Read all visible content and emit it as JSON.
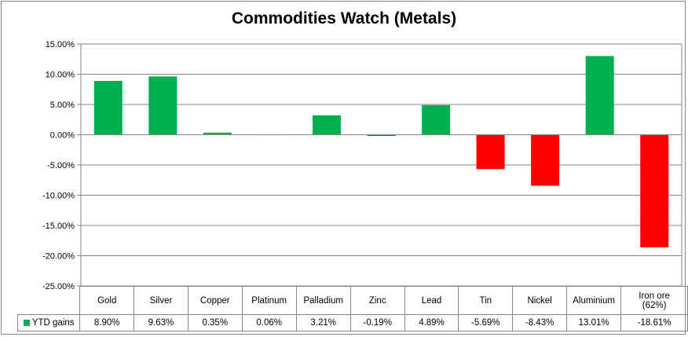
{
  "chart_data": {
    "type": "bar",
    "title": "Commodities Watch (Metals)",
    "categories": [
      "Gold",
      "Silver",
      "Copper",
      "Platinum",
      "Palladium",
      "Zinc",
      "Lead",
      "Tin",
      "Nickel",
      "Aluminium",
      "Iron ore (62%)"
    ],
    "series": [
      {
        "name": "YTD gains",
        "values": [
          8.9,
          9.63,
          0.35,
          0.06,
          3.21,
          -0.19,
          4.89,
          -5.69,
          -8.43,
          13.01,
          -18.61
        ]
      }
    ],
    "value_labels": [
      "8.90%",
      "9.63%",
      "0.35%",
      "0.06%",
      "3.21%",
      "-0.19%",
      "4.89%",
      "-5.69%",
      "-8.43%",
      "13.01%",
      "-18.61%"
    ],
    "yticks": [
      "15.00%",
      "10.00%",
      "5.00%",
      "0.00%",
      "-5.00%",
      "-10.00%",
      "-15.00%",
      "-20.00%",
      "-25.00%"
    ],
    "ylim": [
      -25,
      15
    ],
    "grid": true,
    "xlabel": "",
    "ylabel": "",
    "legend": "data-table",
    "colors": {
      "positive": "#00b050",
      "negative": "#ff0000",
      "grid": "#868686"
    }
  }
}
